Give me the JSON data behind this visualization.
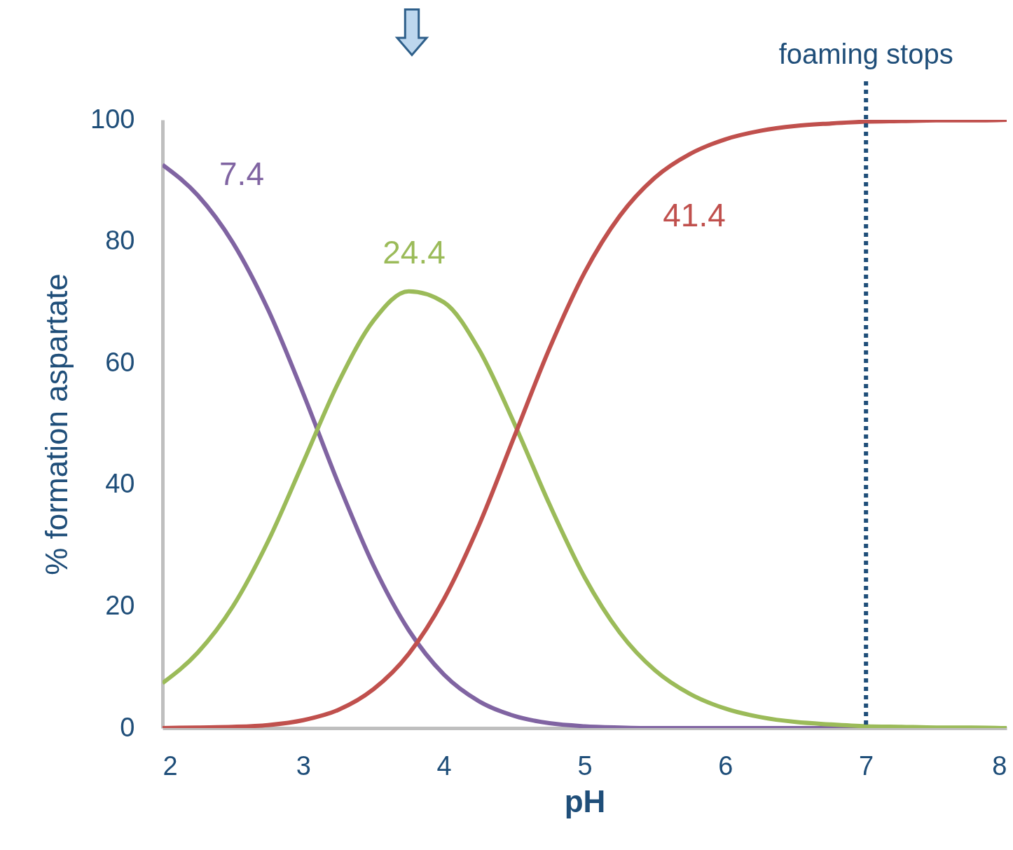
{
  "chart_data": {
    "type": "line",
    "xlabel": "pH",
    "ylabel": "% formation aspartate",
    "x": [
      2,
      2.25,
      2.5,
      2.75,
      3,
      3.25,
      3.5,
      3.75,
      4,
      4.25,
      4.5,
      4.75,
      5,
      5.25,
      5.5,
      5.75,
      6,
      6.25,
      6.5,
      6.75,
      7,
      7.25,
      7.5,
      7.75,
      8
    ],
    "series": [
      {
        "name": "7.4",
        "color": "#8064a2",
        "values": [
          92.6,
          87.6,
          79.8,
          68.8,
          55.0,
          40.2,
          26.7,
          16.1,
          8.8,
          4.4,
          2.0,
          0.8,
          0.3,
          0.1,
          0,
          0,
          0,
          0,
          0,
          0,
          0,
          0,
          0,
          0,
          0
        ]
      },
      {
        "name": "24.4",
        "color": "#9bbb59",
        "values": [
          7.4,
          12.4,
          20.0,
          30.7,
          43.7,
          56.8,
          67.0,
          71.8,
          70.0,
          62.2,
          50.1,
          36.8,
          24.8,
          15.7,
          9.5,
          5.6,
          3.2,
          1.8,
          1.0,
          0.6,
          0.3,
          0.2,
          0.1,
          0.1,
          0
        ]
      },
      {
        "name": "41.4",
        "color": "#c0504d",
        "values": [
          0,
          0.1,
          0.2,
          0.5,
          1.3,
          3.0,
          6.4,
          12.2,
          21.2,
          33.4,
          47.9,
          62.4,
          74.9,
          84.2,
          90.5,
          94.4,
          96.8,
          98.2,
          99.0,
          99.4,
          99.7,
          99.8,
          99.9,
          99.9,
          100
        ]
      }
    ],
    "xlim": [
      2,
      8
    ],
    "xticks": [
      2,
      3,
      4,
      5,
      6,
      7,
      8
    ],
    "ylim": [
      0,
      100
    ],
    "yticks": [
      0,
      20,
      40,
      60,
      80,
      100
    ],
    "ref_lines": [
      {
        "axis": "x",
        "value": 7,
        "label": "foaming stops",
        "color": "#1f4e79",
        "line_style": "dotted"
      }
    ],
    "grid": false,
    "marker": "none",
    "line_style": "solid"
  }
}
